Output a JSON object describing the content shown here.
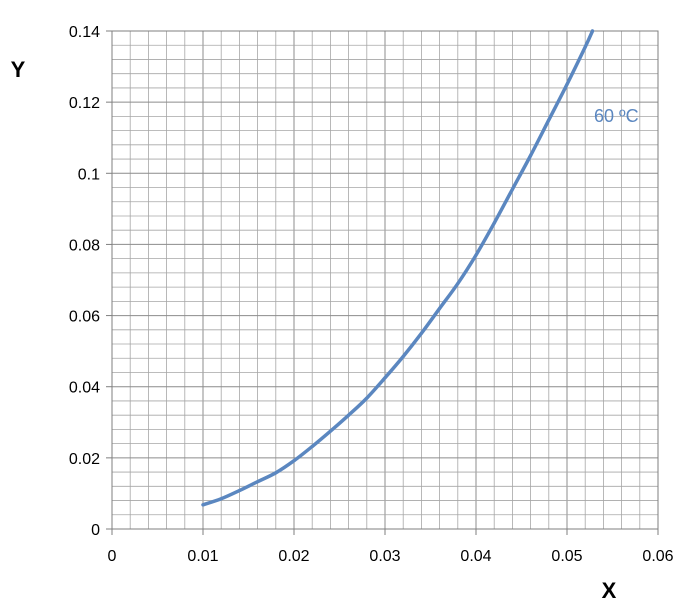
{
  "chart_data": {
    "type": "line",
    "title": "",
    "xlabel": "X",
    "ylabel": "Y",
    "xlim": [
      0,
      0.06
    ],
    "ylim": [
      0,
      0.14
    ],
    "x_ticks": [
      "0",
      "0.01",
      "0.02",
      "0.03",
      "0.04",
      "0.05",
      "0.06"
    ],
    "y_ticks": [
      "0",
      "0.02",
      "0.04",
      "0.06",
      "0.08",
      "0.1",
      "0.12",
      "0.14"
    ],
    "x_tick_values": [
      0,
      0.01,
      0.02,
      0.03,
      0.04,
      0.05,
      0.06
    ],
    "y_tick_values": [
      0,
      0.02,
      0.04,
      0.06,
      0.08,
      0.1,
      0.12,
      0.14
    ],
    "grid": true,
    "minor_grid": true,
    "grid_color": "#a6a6a6",
    "series": [
      {
        "name": "60 ºC",
        "color": "#5b87c0",
        "x": [
          0.01,
          0.012,
          0.014,
          0.016,
          0.018,
          0.02,
          0.022,
          0.024,
          0.026,
          0.028,
          0.03,
          0.032,
          0.034,
          0.036,
          0.038,
          0.04,
          0.042,
          0.044,
          0.046,
          0.048,
          0.05,
          0.052,
          0.0528
        ],
        "y": [
          0.0068,
          0.0085,
          0.0108,
          0.0133,
          0.0158,
          0.0192,
          0.0232,
          0.0275,
          0.032,
          0.0368,
          0.0425,
          0.0485,
          0.055,
          0.062,
          0.069,
          0.077,
          0.086,
          0.0955,
          0.105,
          0.115,
          0.125,
          0.1355,
          0.14
        ]
      }
    ]
  }
}
